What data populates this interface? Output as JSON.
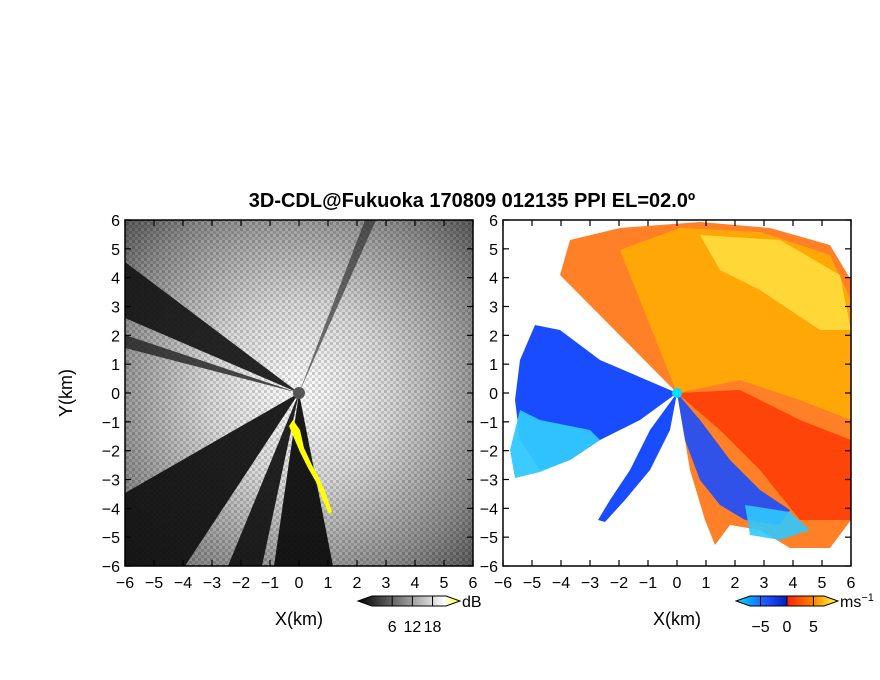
{
  "figure": {
    "title": "3D-CDL@Fukuoka 170809 012135 PPI EL=02.0º"
  },
  "chart_data": [
    {
      "type": "heatmap",
      "panel": "left",
      "quantity": "reflectivity",
      "xlabel": "X(km)",
      "ylabel": "Y(km)",
      "xlim": [
        -6,
        6
      ],
      "ylim": [
        -6,
        6
      ],
      "x_ticks": [
        "−6",
        "−5",
        "−4",
        "−3",
        "−2",
        "−1",
        "0",
        "1",
        "2",
        "3",
        "4",
        "5",
        "6"
      ],
      "y_ticks": [
        "6",
        "5",
        "4",
        "3",
        "2",
        "1",
        "0",
        "−1",
        "−2",
        "−3",
        "−4",
        "−5",
        "−6"
      ],
      "colorbar": {
        "unit": "dB",
        "ticks": [
          "6",
          "12",
          "18"
        ],
        "tick_values": [
          6,
          12,
          18
        ],
        "range": [
          0,
          22
        ],
        "colors": [
          "#000000",
          "#ffffff",
          "#ffff00"
        ]
      }
    },
    {
      "type": "heatmap",
      "panel": "right",
      "quantity": "doppler velocity",
      "xlabel": "X(km)",
      "ylabel": "",
      "xlim": [
        -6,
        6
      ],
      "ylim": [
        -6,
        6
      ],
      "x_ticks": [
        "−6",
        "−5",
        "−4",
        "−3",
        "−2",
        "−1",
        "0",
        "1",
        "2",
        "3",
        "4",
        "5",
        "6"
      ],
      "y_ticks": [
        "6",
        "5",
        "4",
        "3",
        "2",
        "1",
        "0",
        "−1",
        "−2",
        "−3",
        "−4",
        "−5",
        "−6"
      ],
      "colorbar": {
        "unit": "ms",
        "unit_exponent": "−1",
        "ticks": [
          "−5",
          "0",
          "5"
        ],
        "tick_values": [
          -5,
          0,
          5
        ],
        "range": [
          -7,
          7
        ],
        "colors": [
          "#00e0ff",
          "#2050ff",
          "#0020c0",
          "#ff2000",
          "#ff8000",
          "#ffff40"
        ]
      }
    }
  ]
}
